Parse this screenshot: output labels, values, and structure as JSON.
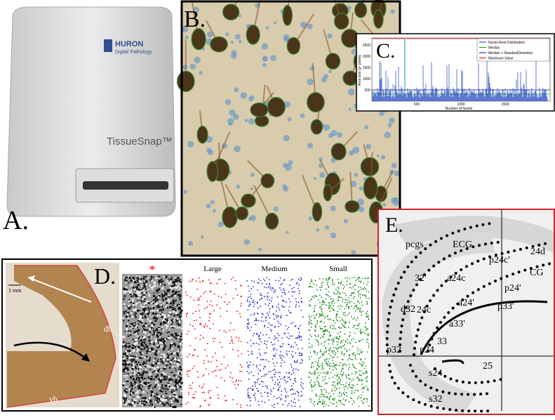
{
  "panels": {
    "a": {
      "label": "A.",
      "brand": "HURON",
      "brand_sub": "Digital Pathology",
      "product": "TissueSnap™"
    },
    "b": {
      "label": "B."
    },
    "c": {
      "label": "C.",
      "legend": [
        "Nuclei Area Distribution",
        "Median",
        "Median + StandardDeviation",
        "Maximum Value"
      ],
      "x_axis_title": "Number of Nuclei",
      "xticks": [
        "500",
        "1000",
        "1500"
      ],
      "yticks": [
        "500",
        "1000",
        "1500",
        "2000",
        "2500"
      ],
      "y_axis_title": "Area size (μ² pixels)"
    },
    "d": {
      "label": "D.",
      "asterisk": "*",
      "scale": "1 mm",
      "regions": [
        "db",
        "vb"
      ],
      "columns": [
        "Large",
        "Medium",
        "Small"
      ]
    },
    "e": {
      "label": "E.",
      "regions": [
        "pcgs",
        "ECG",
        "24d",
        "p24c'",
        "32'",
        "a24c",
        "CG",
        "d32",
        "p24'",
        "a24'",
        "24c",
        "p33'",
        "a33'",
        "33",
        "p32",
        "p24",
        "25",
        "s24",
        "s32"
      ]
    }
  }
}
